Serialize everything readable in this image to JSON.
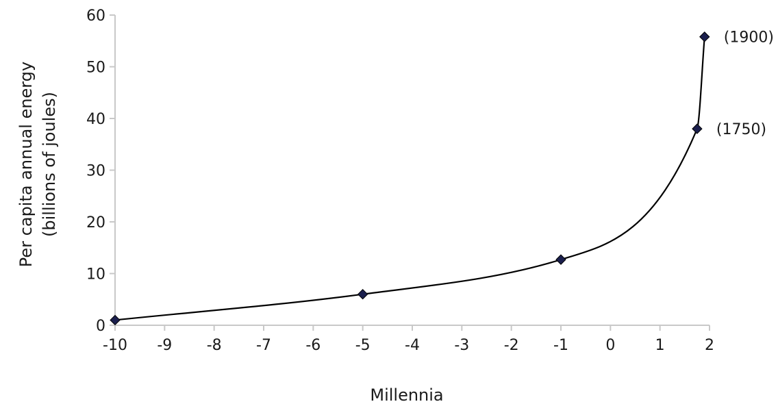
{
  "chart_data": {
    "type": "line",
    "title": "",
    "xlabel": "Millennia",
    "ylabel_lines": [
      "Per capita annual energy",
      "(billions of joules)"
    ],
    "xlim": [
      -10,
      2
    ],
    "ylim": [
      0,
      60
    ],
    "xticks": [
      -10,
      -9,
      -8,
      -7,
      -6,
      -5,
      -4,
      -3,
      -2,
      -1,
      0,
      1,
      2
    ],
    "yticks": [
      0,
      10,
      20,
      30,
      40,
      50,
      60
    ],
    "grid": false,
    "legend": "none",
    "series": [
      {
        "color": "#000000",
        "marker_color": "#1b1f4d",
        "points": [
          {
            "x": -10,
            "y": 1
          },
          {
            "x": -5,
            "y": 6
          },
          {
            "x": -1,
            "y": 12.7
          },
          {
            "x": 1.75,
            "y": 38
          },
          {
            "x": 1.9,
            "y": 55.8
          }
        ]
      }
    ],
    "annotations": [
      {
        "text": "(1750)",
        "x": 1.75,
        "y": 38
      },
      {
        "text": "(1900)",
        "x": 1.9,
        "y": 55.8
      }
    ]
  }
}
